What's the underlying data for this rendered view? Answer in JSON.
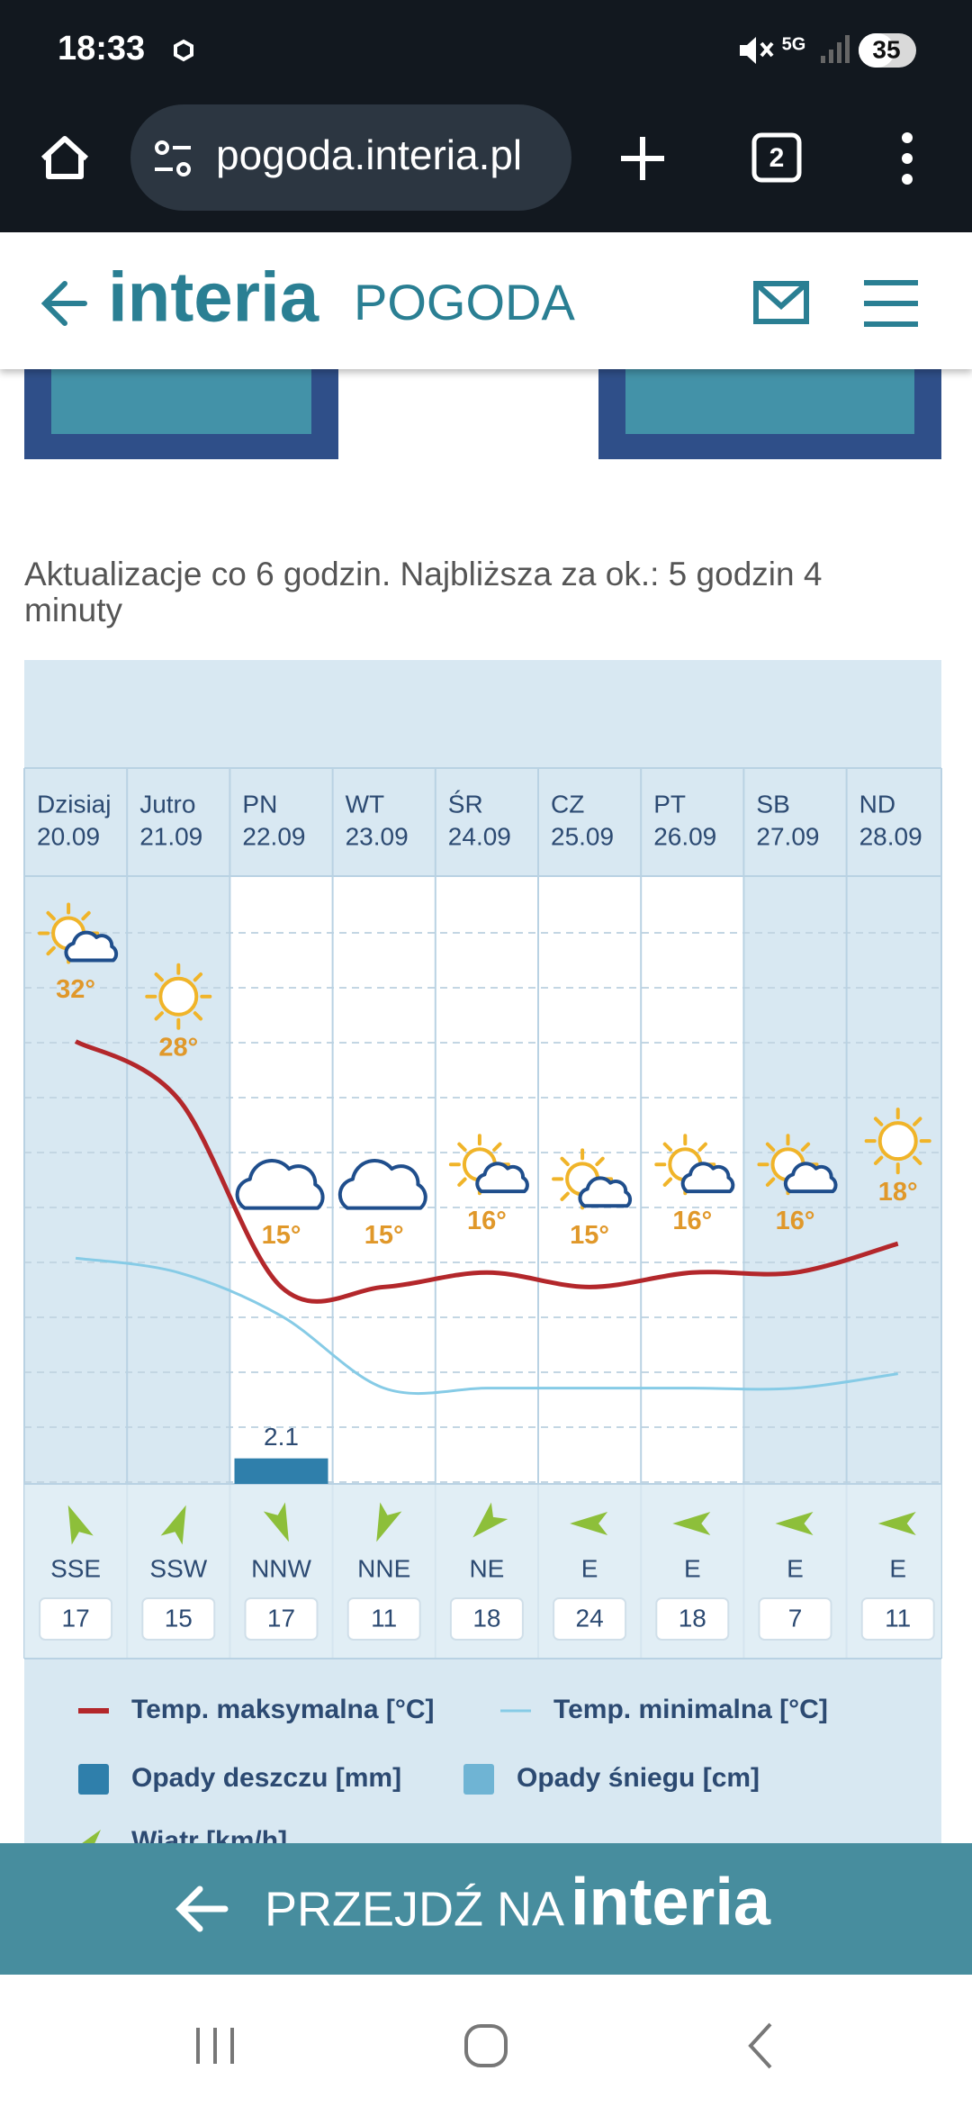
{
  "status_bar": {
    "time": "18:33",
    "network": "5G",
    "battery": "35"
  },
  "browser": {
    "url": "pogoda.interia.pl",
    "tab_count": "2"
  },
  "header": {
    "logo": "interia",
    "section": "POGODA"
  },
  "update_note": "Aktualizacje co 6 godzin. Najbliższa za ok.: 5 godzin 4 minuty",
  "chart_data": {
    "type": "line",
    "categories": [
      "Dzisiaj",
      "Jutro",
      "PN",
      "WT",
      "ŚR",
      "CZ",
      "PT",
      "SB",
      "ND"
    ],
    "dates": [
      "20.09",
      "21.09",
      "22.09",
      "23.09",
      "24.09",
      "25.09",
      "26.09",
      "27.09",
      "28.09"
    ],
    "ylim": [
      0,
      44
    ],
    "y2lim": [
      0,
      50
    ],
    "grid": true,
    "series": [
      {
        "name": "Temp. maksymalna [°C]",
        "color": "#b3272b",
        "values": [
          32,
          28,
          15,
          15,
          16,
          15,
          16,
          16,
          18
        ],
        "value_labels": [
          "32°",
          "28°",
          "15°",
          "15°",
          "16°",
          "15°",
          "16°",
          "16°",
          "18°"
        ]
      },
      {
        "name": "Temp. minimalna [°C]",
        "color": "#86cbe6",
        "values": [
          17,
          16,
          13,
          8,
          8,
          8,
          8,
          8,
          9
        ]
      },
      {
        "name": "Opady deszczu [mm]",
        "color": "#2f7fab",
        "axis": "y2",
        "values": [
          0,
          0,
          2.1,
          0,
          0,
          0,
          0,
          0,
          0
        ]
      },
      {
        "name": "Opady śniegu [cm]",
        "color": "#6fb4d4",
        "axis": "y2",
        "values": [
          0,
          0,
          0,
          0,
          0,
          0,
          0,
          0,
          0
        ]
      }
    ],
    "wind": {
      "name": "Wiatr [km/h]",
      "color": "#8dbf3a",
      "directions": [
        "SSE",
        "SSW",
        "NNW",
        "NNE",
        "NE",
        "E",
        "E",
        "E",
        "E"
      ],
      "values": [
        17,
        15,
        17,
        11,
        18,
        24,
        18,
        7,
        11
      ]
    }
  },
  "footer": {
    "text": "PRZEJDŹ NA",
    "logo": "interia"
  }
}
